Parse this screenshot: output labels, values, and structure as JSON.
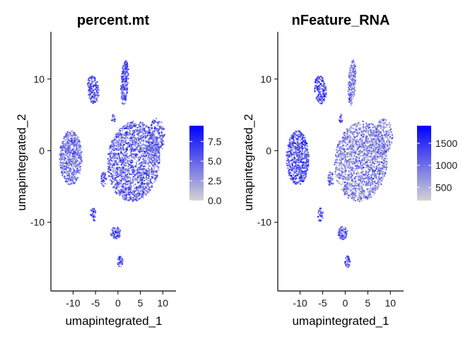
{
  "colors": {
    "low": "#d3d3d3",
    "high": "#0000ff"
  },
  "chart_data": [
    {
      "type": "scatter",
      "title": "percent.mt",
      "xlabel": "umapintegrated_1",
      "ylabel": "umapintegrated_2",
      "xlim": [
        -14,
        12
      ],
      "ylim": [
        -19,
        16
      ],
      "xticks": [
        -10,
        -5,
        0,
        5,
        10
      ],
      "yticks": [
        -10,
        0,
        10
      ],
      "colorbar": {
        "min": 0,
        "max": 9.5,
        "ticks": [
          0,
          2.5,
          5,
          7.5
        ],
        "tick_labels": [
          "0.0",
          "2.5",
          "5.0",
          "7.5"
        ]
      },
      "clusters": [
        {
          "cx": 3.5,
          "cy": -1.5,
          "rx": 6.0,
          "ry": 5.5,
          "rot": 0.55,
          "n": 1800,
          "mean": 0.45
        },
        {
          "cx": 8.5,
          "cy": 2.0,
          "rx": 2.0,
          "ry": 2.5,
          "rot": 0,
          "n": 220,
          "mean": 0.45
        },
        {
          "cx": -10.5,
          "cy": -1.0,
          "rx": 2.5,
          "ry": 3.8,
          "rot": 0,
          "n": 650,
          "mean": 0.4
        },
        {
          "cx": -5.5,
          "cy": 8.5,
          "rx": 1.3,
          "ry": 2.0,
          "rot": 0.2,
          "n": 170,
          "mean": 0.55
        },
        {
          "cx": 1.5,
          "cy": 9.5,
          "rx": 0.8,
          "ry": 3.2,
          "rot": -0.1,
          "n": 210,
          "mean": 0.55
        },
        {
          "cx": -3.2,
          "cy": -4.0,
          "rx": 0.6,
          "ry": 1.1,
          "rot": 0,
          "n": 45,
          "mean": 0.5
        },
        {
          "cx": -1.0,
          "cy": 4.5,
          "rx": 0.4,
          "ry": 0.7,
          "rot": 0,
          "n": 18,
          "mean": 0.5
        },
        {
          "cx": -5.5,
          "cy": -9.0,
          "rx": 0.6,
          "ry": 1.0,
          "rot": 0,
          "n": 35,
          "mean": 0.55
        },
        {
          "cx": -0.5,
          "cy": -11.5,
          "rx": 1.1,
          "ry": 0.9,
          "rot": 0,
          "n": 80,
          "mean": 0.55
        },
        {
          "cx": 0.5,
          "cy": -15.5,
          "rx": 0.6,
          "ry": 0.8,
          "rot": 0,
          "n": 40,
          "mean": 0.55
        }
      ]
    },
    {
      "type": "scatter",
      "title": "nFeature_RNA",
      "xlabel": "umapintegrated_1",
      "ylabel": "umapintegrated_2",
      "xlim": [
        -14,
        12
      ],
      "ylim": [
        -19,
        16
      ],
      "xticks": [
        -10,
        -5,
        0,
        5,
        10
      ],
      "yticks": [
        -10,
        0,
        10
      ],
      "colorbar": {
        "min": 200,
        "max": 1900,
        "ticks": [
          500,
          1000,
          1500
        ],
        "tick_labels": [
          "500",
          "1000",
          "1500"
        ]
      },
      "clusters": [
        {
          "cx": 3.5,
          "cy": -1.5,
          "rx": 6.0,
          "ry": 5.5,
          "rot": 0.55,
          "n": 1800,
          "mean": 0.3
        },
        {
          "cx": 8.5,
          "cy": 2.0,
          "rx": 2.0,
          "ry": 2.5,
          "rot": 0,
          "n": 220,
          "mean": 0.3
        },
        {
          "cx": -10.5,
          "cy": -1.0,
          "rx": 2.5,
          "ry": 3.8,
          "rot": 0,
          "n": 650,
          "mean": 0.55
        },
        {
          "cx": -5.5,
          "cy": 8.5,
          "rx": 1.3,
          "ry": 2.0,
          "rot": 0.2,
          "n": 170,
          "mean": 0.6
        },
        {
          "cx": 1.5,
          "cy": 9.5,
          "rx": 0.8,
          "ry": 3.2,
          "rot": -0.1,
          "n": 210,
          "mean": 0.35
        },
        {
          "cx": -3.2,
          "cy": -4.0,
          "rx": 0.6,
          "ry": 1.1,
          "rot": 0,
          "n": 45,
          "mean": 0.45
        },
        {
          "cx": -1.0,
          "cy": 4.5,
          "rx": 0.4,
          "ry": 0.7,
          "rot": 0,
          "n": 18,
          "mean": 0.5
        },
        {
          "cx": -5.5,
          "cy": -9.0,
          "rx": 0.6,
          "ry": 1.0,
          "rot": 0,
          "n": 35,
          "mean": 0.55
        },
        {
          "cx": -0.5,
          "cy": -11.5,
          "rx": 1.1,
          "ry": 0.9,
          "rot": 0,
          "n": 80,
          "mean": 0.55
        },
        {
          "cx": 0.5,
          "cy": -15.5,
          "rx": 0.6,
          "ry": 0.8,
          "rot": 0,
          "n": 40,
          "mean": 0.5
        }
      ]
    }
  ]
}
